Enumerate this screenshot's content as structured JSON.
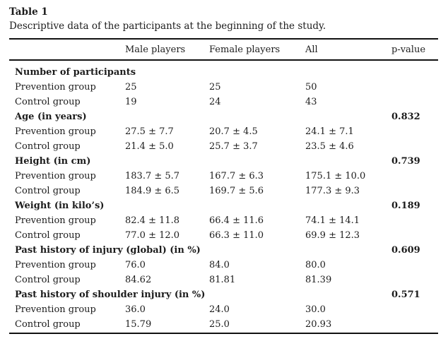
{
  "table": {
    "label": "Table 1",
    "caption": "Descriptive data of the participants at the beginning of the study.",
    "columns": [
      "",
      "Male players",
      "Female players",
      "All",
      "p-value"
    ],
    "sections": [
      {
        "header": "Number of participants",
        "p_value": "",
        "rows": [
          {
            "label": "Prevention group",
            "male": "25",
            "female": "25",
            "all": "50"
          },
          {
            "label": "Control group",
            "male": "19",
            "female": "24",
            "all": "43"
          }
        ]
      },
      {
        "header": "Age (in years)",
        "p_value": "0.832",
        "rows": [
          {
            "label": "Prevention group",
            "male": "27.5 ± 7.7",
            "female": "20.7 ± 4.5",
            "all": "24.1 ± 7.1"
          },
          {
            "label": "Control group",
            "male": "21.4 ± 5.0",
            "female": "25.7 ± 3.7",
            "all": "23.5 ± 4.6"
          }
        ]
      },
      {
        "header": "Height (in cm)",
        "p_value": "0.739",
        "rows": [
          {
            "label": "Prevention group",
            "male": "183.7 ± 5.7",
            "female": "167.7 ± 6.3",
            "all": "175.1 ± 10.0"
          },
          {
            "label": "Control group",
            "male": "184.9 ± 6.5",
            "female": "169.7 ± 5.6",
            "all": "177.3 ± 9.3"
          }
        ]
      },
      {
        "header": "Weight (in kilo’s)",
        "p_value": "0.189",
        "rows": [
          {
            "label": "Prevention group",
            "male": "82.4 ± 11.8",
            "female": "66.4 ± 11.6",
            "all": "74.1 ± 14.1"
          },
          {
            "label": "Control group",
            "male": "77.0 ± 12.0",
            "female": "66.3 ± 11.0",
            "all": "69.9 ± 12.3"
          }
        ]
      },
      {
        "header": "Past history of injury (global) (in %)",
        "p_value": "0.609",
        "rows": [
          {
            "label": "Prevention group",
            "male": "76.0",
            "female": "84.0",
            "all": "80.0"
          },
          {
            "label": "Control group",
            "male": "84.62",
            "female": "81.81",
            "all": "81.39"
          }
        ]
      },
      {
        "header": "Past history of shoulder injury (in %)",
        "p_value": "0.571",
        "rows": [
          {
            "label": "Prevention group",
            "male": "36.0",
            "female": "24.0",
            "all": "30.0"
          },
          {
            "label": "Control group",
            "male": "15.79",
            "female": "25.0",
            "all": "20.93"
          }
        ]
      }
    ]
  }
}
